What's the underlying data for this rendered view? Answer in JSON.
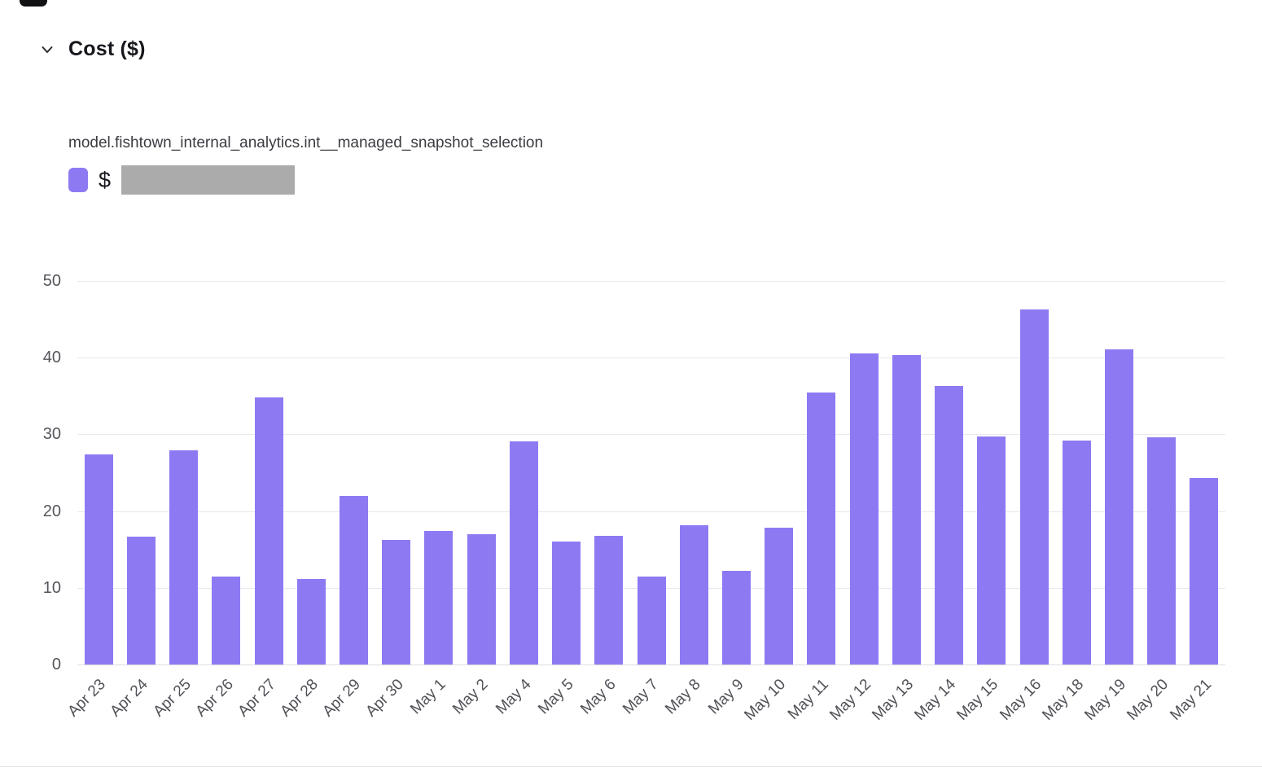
{
  "header": {
    "title": "Cost ($)"
  },
  "legend": {
    "model_name": "model.fishtown_internal_analytics.int__managed_snapshot_selection",
    "value_prefix": "$",
    "value_redacted": true,
    "swatch_color": "#8d7af3",
    "redacted_color": "#ababab"
  },
  "colors": {
    "bar": "#8d7af3",
    "grid": "#e9e9ed",
    "axis_text": "#55565c",
    "title_text": "#17171d"
  },
  "chart_data": {
    "type": "bar",
    "title": "Cost ($)",
    "series_name": "model.fishtown_internal_analytics.int__managed_snapshot_selection",
    "xlabel": "",
    "ylabel": "Cost ($)",
    "ylim": [
      0,
      50
    ],
    "yticks": [
      0,
      10,
      20,
      30,
      40,
      50
    ],
    "grid": true,
    "legend_position": "top-left",
    "bar_color": "#8d7af3",
    "categories": [
      "Apr 23",
      "Apr 24",
      "Apr 25",
      "Apr 26",
      "Apr 27",
      "Apr 28",
      "Apr 29",
      "Apr 30",
      "May 1",
      "May 2",
      "May 4",
      "May 5",
      "May 6",
      "May 7",
      "May 8",
      "May 9",
      "May 10",
      "May 11",
      "May 12",
      "May 13",
      "May 14",
      "May 15",
      "May 16",
      "May 18",
      "May 19",
      "May 20",
      "May 21"
    ],
    "values": [
      27.4,
      16.7,
      27.9,
      11.5,
      34.8,
      11.1,
      22.0,
      16.2,
      17.4,
      17.0,
      29.1,
      16.0,
      16.8,
      11.5,
      18.1,
      12.2,
      17.8,
      35.5,
      40.5,
      40.3,
      36.3,
      29.7,
      46.3,
      29.2,
      41.1,
      29.6,
      24.3
    ]
  }
}
